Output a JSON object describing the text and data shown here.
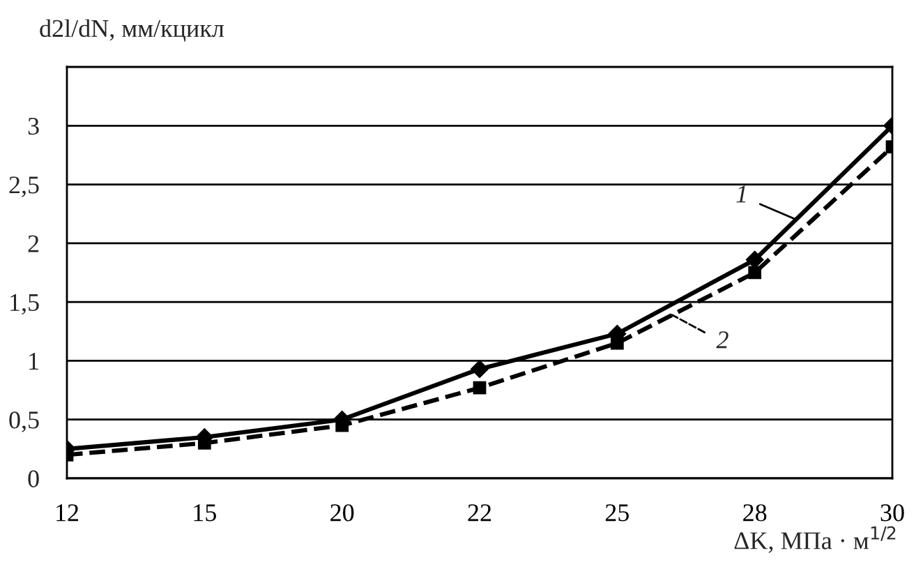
{
  "chart_data": {
    "type": "line",
    "ylabel": "d2l/dN, мм/кцикл",
    "xlabel": "ΔK, МПа · м$^{1/2}$",
    "categories": [
      "12",
      "15",
      "20",
      "22",
      "25",
      "28",
      "30"
    ],
    "series": [
      {
        "name": "1",
        "color": "#000000",
        "marker": "diamond",
        "line_style": "solid",
        "values": [
          0.25,
          0.35,
          0.5,
          0.93,
          1.23,
          1.86,
          3.0
        ]
      },
      {
        "name": "2",
        "color": "#000000",
        "marker": "square",
        "line_style": "dashed",
        "values": [
          0.2,
          0.3,
          0.45,
          0.77,
          1.15,
          1.75,
          2.82
        ]
      }
    ],
    "ylim": [
      0,
      3.5
    ],
    "yticks": [
      0,
      {
        "value": 0.5,
        "label": "0,5"
      },
      1,
      {
        "value": 1.5,
        "label": "1,5"
      },
      2,
      {
        "value": 2.5,
        "label": "2,5"
      },
      3
    ],
    "grid": "y"
  }
}
